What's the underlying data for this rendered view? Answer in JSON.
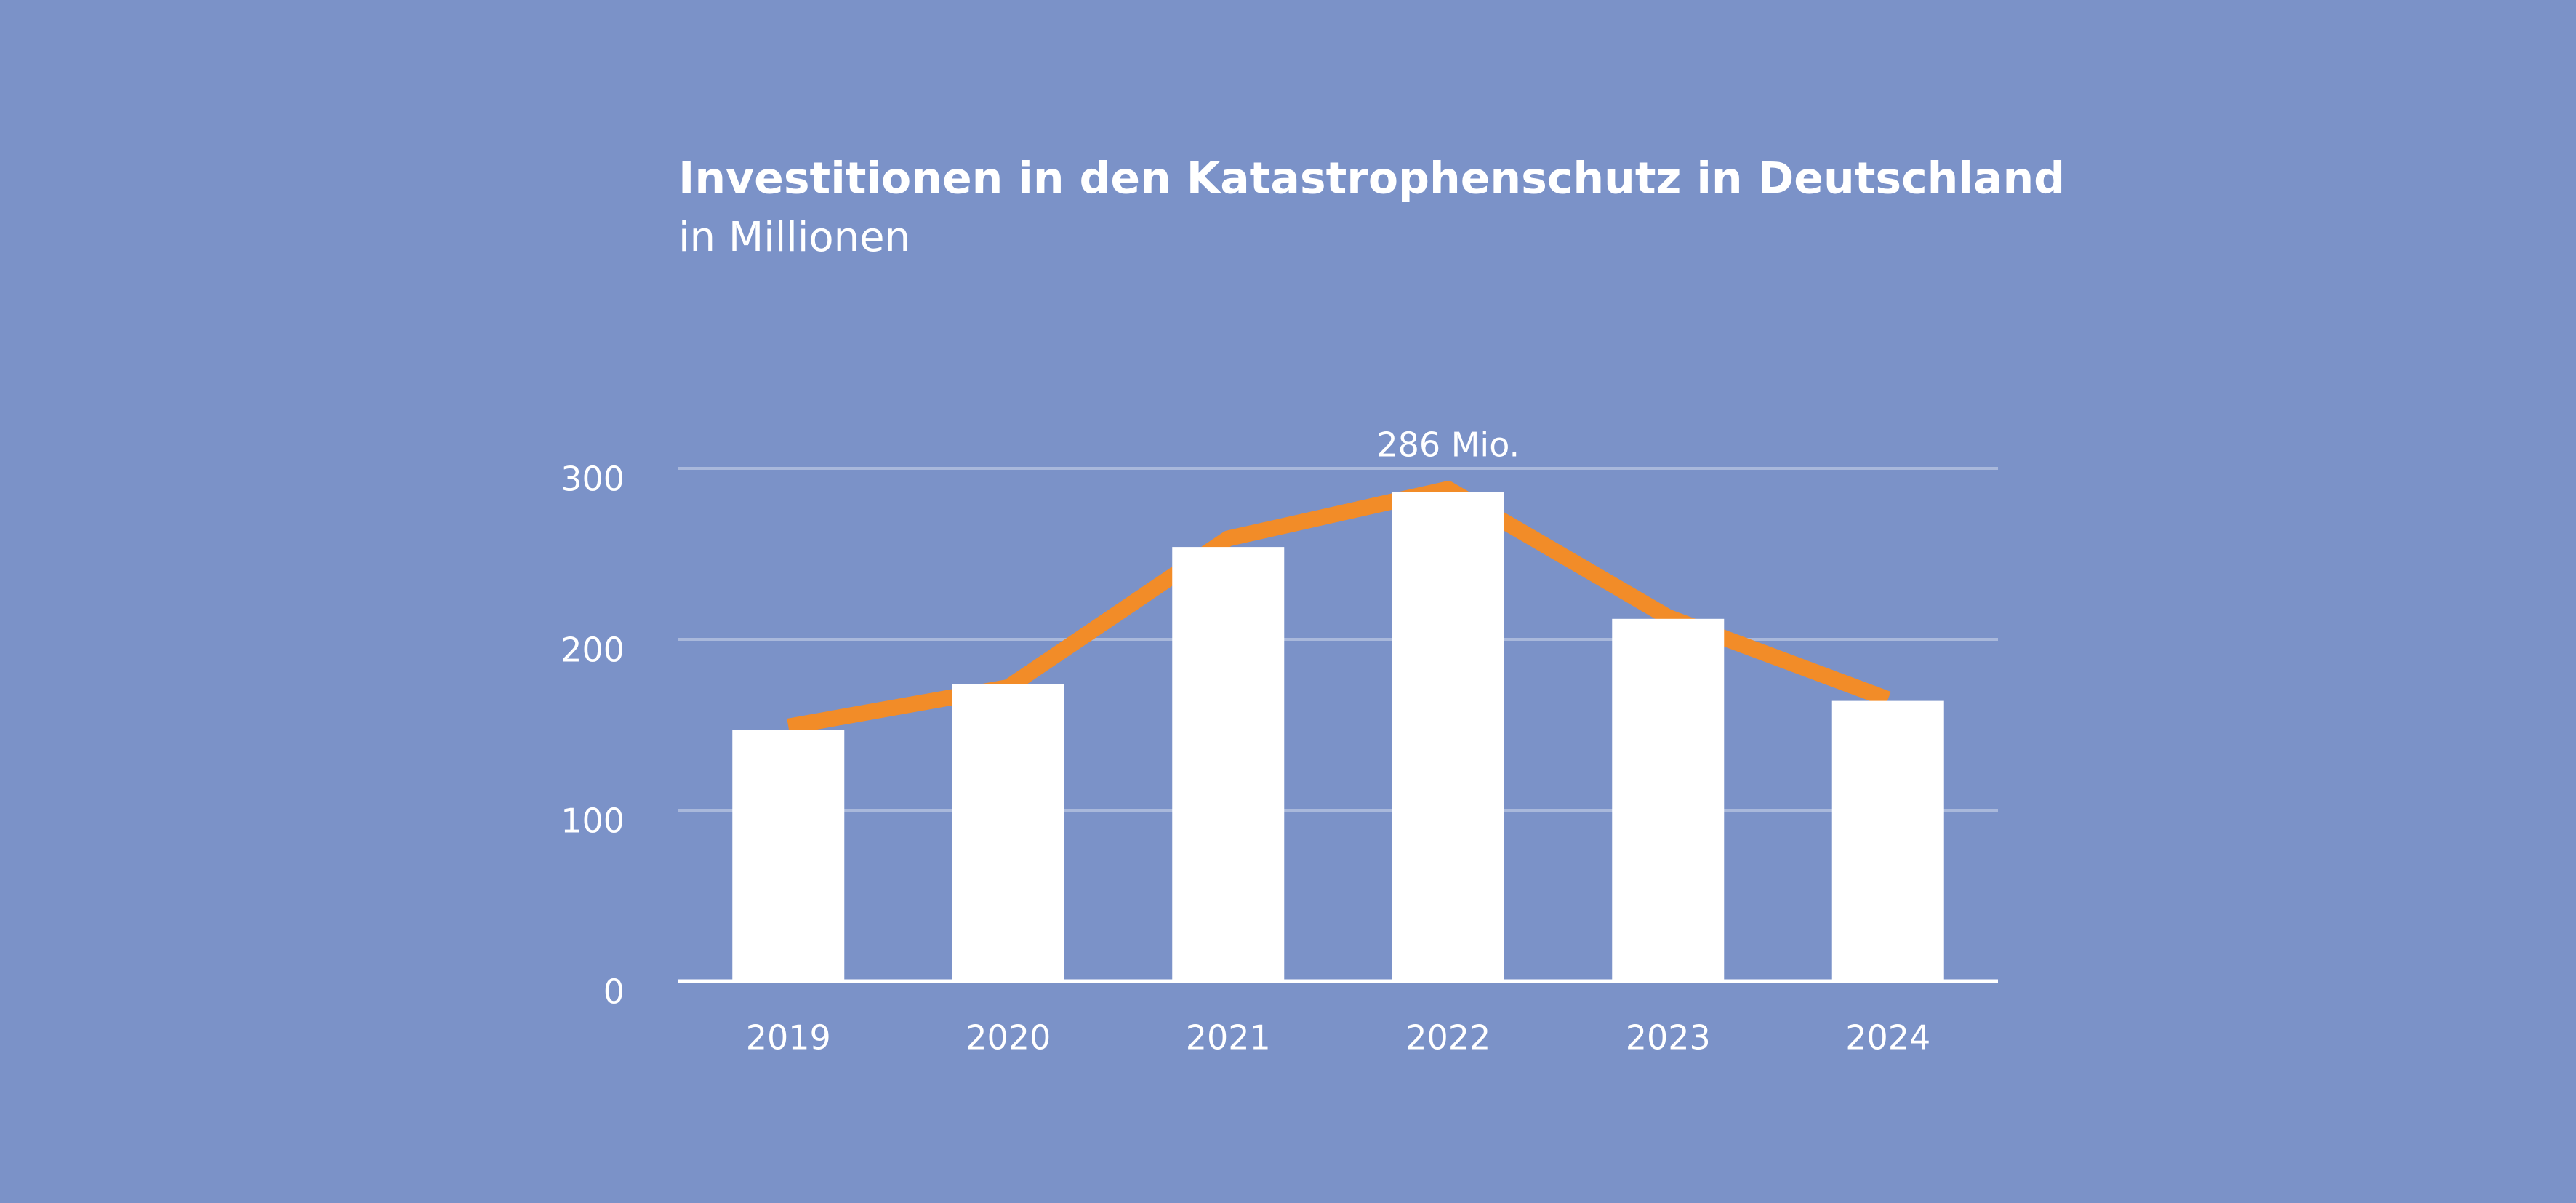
{
  "chart_data": {
    "type": "bar",
    "title": "Investitionen in den Katastrophenschutz in Deutschland",
    "subtitle": "in Millionen",
    "categories": [
      "2019",
      "2020",
      "2021",
      "2022",
      "2023",
      "2024"
    ],
    "series": [
      {
        "type": "bar",
        "color": "#ffffff",
        "values": [
          147,
          174,
          254,
          286,
          212,
          164
        ],
        "value_labels": [
          null,
          null,
          null,
          "286 Mio.",
          null,
          null
        ]
      },
      {
        "type": "line",
        "color": "#f28c28",
        "values": [
          149,
          172,
          259,
          288,
          213,
          165
        ]
      }
    ],
    "ylim": [
      0,
      300
    ],
    "yticks": [
      0,
      100,
      200,
      300
    ],
    "grid": true
  }
}
